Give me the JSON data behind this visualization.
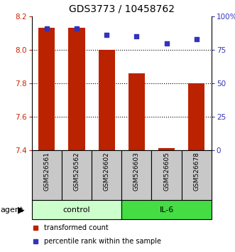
{
  "title": "GDS3773 / 10458762",
  "samples": [
    "GSM526561",
    "GSM526562",
    "GSM526602",
    "GSM526603",
    "GSM526605",
    "GSM526678"
  ],
  "bar_values": [
    8.13,
    8.13,
    8.0,
    7.86,
    7.41,
    7.8
  ],
  "percentile_values": [
    91,
    91,
    86,
    85,
    80,
    83
  ],
  "ylim_left": [
    7.4,
    8.2
  ],
  "ylim_right": [
    0,
    100
  ],
  "yticks_left": [
    7.4,
    7.6,
    7.8,
    8.0,
    8.2
  ],
  "yticks_right": [
    0,
    25,
    50,
    75,
    100
  ],
  "ytick_labels_right": [
    "0",
    "25",
    "50",
    "75",
    "100%"
  ],
  "bar_color": "#bb2200",
  "dot_color": "#3333bb",
  "bar_bottom": 7.4,
  "groups": [
    {
      "label": "control",
      "indices": [
        0,
        1,
        2
      ],
      "color": "#ccffcc"
    },
    {
      "label": "IL-6",
      "indices": [
        3,
        4,
        5
      ],
      "color": "#44dd44"
    }
  ],
  "agent_label": "agent",
  "legend_bar_label": "transformed count",
  "legend_dot_label": "percentile rank within the sample",
  "tick_label_color_left": "#cc2200",
  "tick_label_color_right": "#3333bb",
  "title_fontsize": 10,
  "tick_fontsize": 7.5,
  "bar_width": 0.55,
  "sample_label_fontsize": 6.5,
  "group_label_fontsize": 8,
  "legend_fontsize": 7
}
